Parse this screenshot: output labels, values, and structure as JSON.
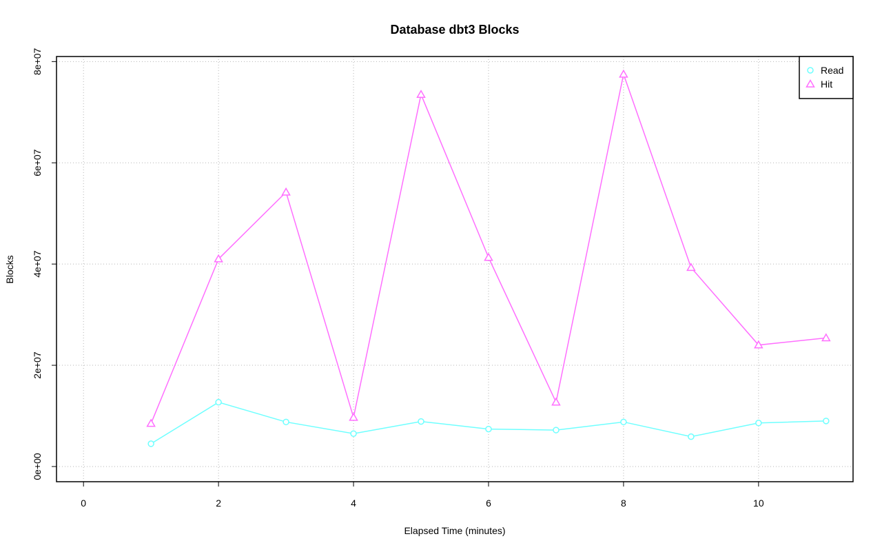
{
  "chart_data": {
    "type": "line",
    "title": "Database dbt3 Blocks",
    "xlabel": "Elapsed Time (minutes)",
    "ylabel": "Blocks",
    "xlim": [
      -0.4,
      11.4
    ],
    "ylim": [
      -3000000,
      81000000
    ],
    "x_ticks": [
      0,
      2,
      4,
      6,
      8,
      10
    ],
    "x_tick_labels": [
      "0",
      "2",
      "4",
      "6",
      "8",
      "10"
    ],
    "y_ticks": [
      0,
      20000000,
      40000000,
      60000000,
      80000000
    ],
    "y_tick_labels": [
      "0e+00",
      "2e+07",
      "4e+07",
      "6e+07",
      "8e+07"
    ],
    "grid": true,
    "legend_position": "top-right",
    "x": [
      1,
      2,
      3,
      4,
      5,
      6,
      7,
      8,
      9,
      10,
      11
    ],
    "series": [
      {
        "name": "Read",
        "color": "#6EFFFF",
        "marker": "circle",
        "values": [
          4500000,
          12700000,
          8800000,
          6500000,
          8900000,
          7400000,
          7200000,
          8800000,
          5900000,
          8600000,
          9000000
        ]
      },
      {
        "name": "Hit",
        "color": "#FF6EFF",
        "marker": "triangle",
        "values": [
          8500000,
          41000000,
          54200000,
          9700000,
          73500000,
          41300000,
          12700000,
          77500000,
          39300000,
          24000000,
          25400000
        ]
      }
    ]
  }
}
